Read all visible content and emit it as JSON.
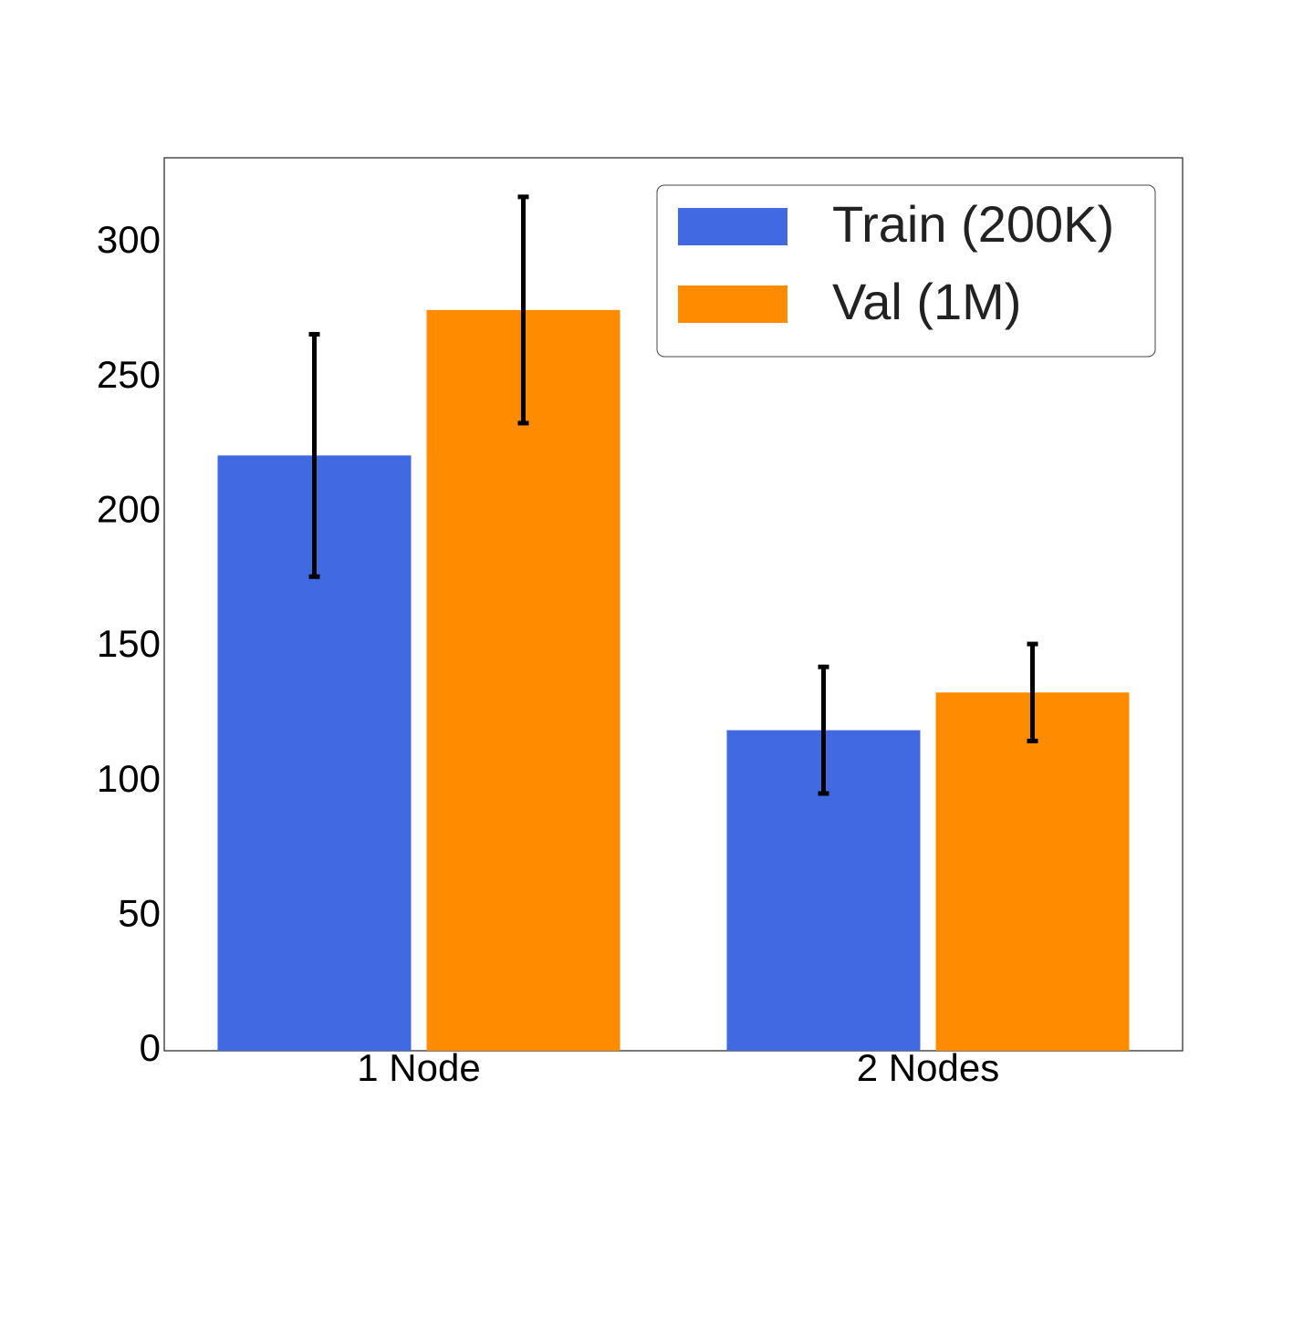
{
  "chart_data": {
    "type": "bar",
    "categories": [
      "1 Node",
      "2 Nodes"
    ],
    "series": [
      {
        "name": "Train (200K)",
        "color": "#4169e1",
        "values": [
          221,
          119
        ],
        "errors": [
          45,
          23.5
        ]
      },
      {
        "name": "Val (1M)",
        "color": "#ff8c00",
        "values": [
          275,
          133
        ],
        "errors": [
          42,
          18
        ]
      }
    ],
    "ylim": [
      0,
      331.5
    ],
    "yticks": [
      0,
      50,
      100,
      150,
      200,
      250,
      300
    ],
    "grid": false,
    "legend": "upper right"
  }
}
